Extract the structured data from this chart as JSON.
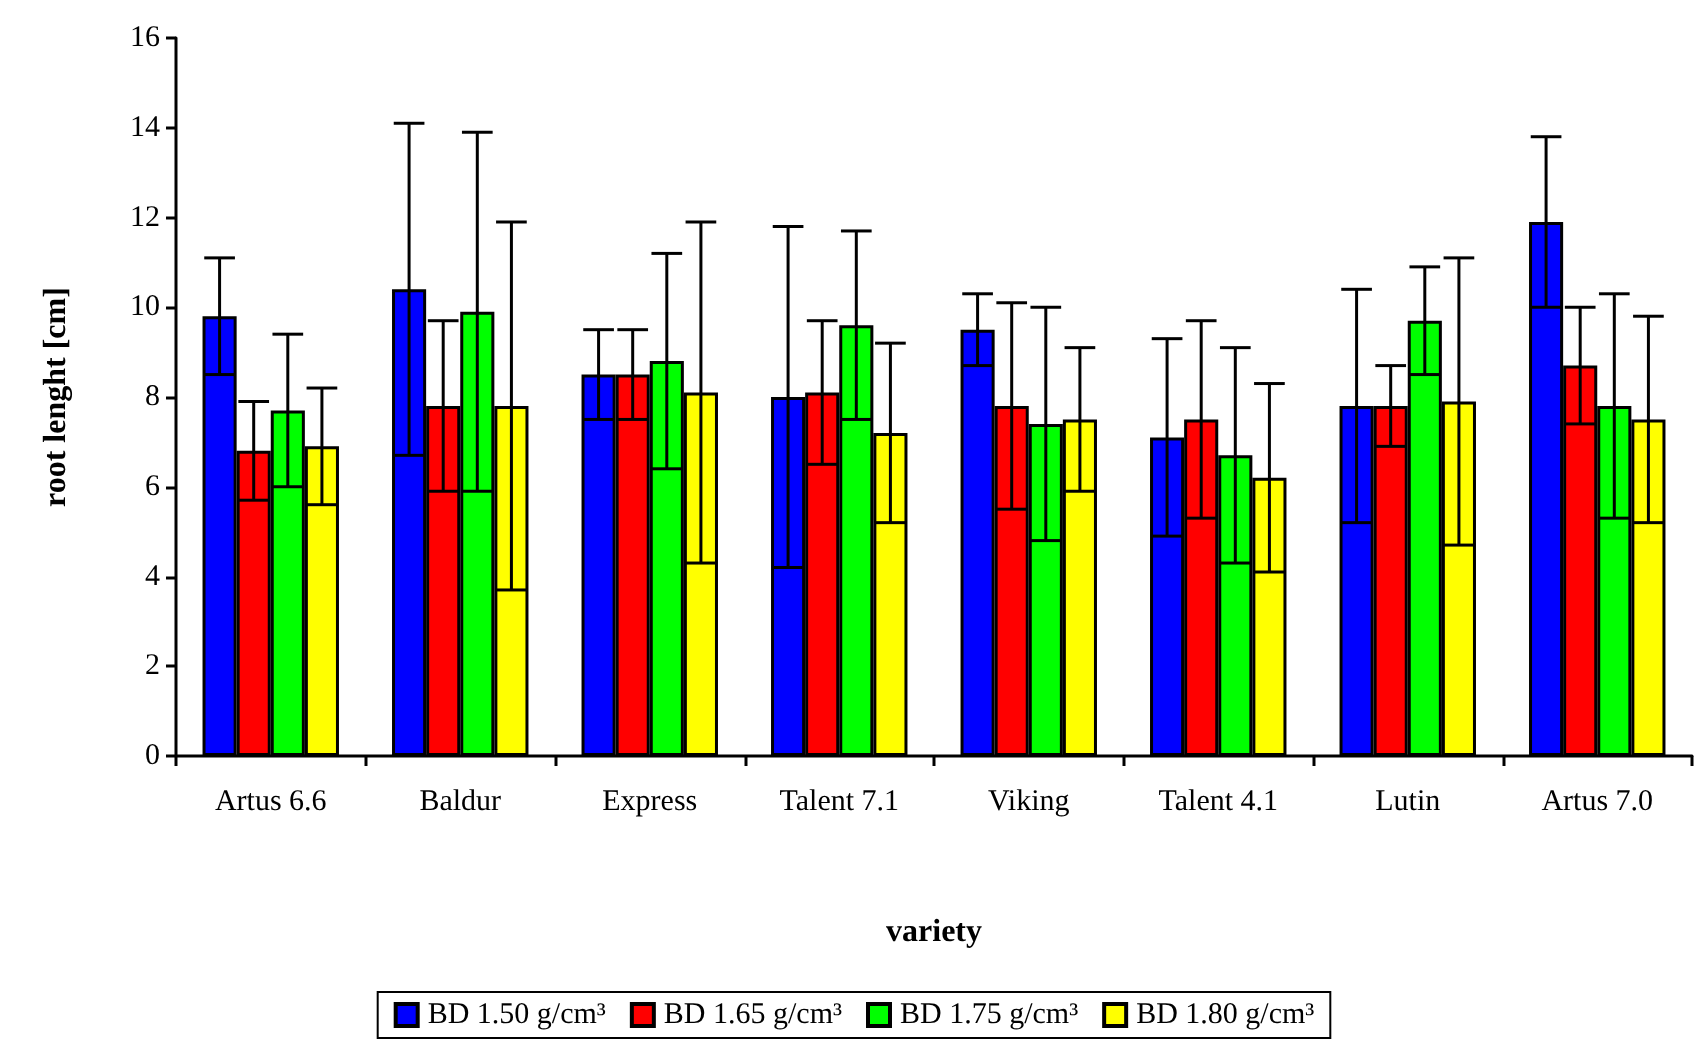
{
  "chart_data": {
    "type": "bar",
    "xlabel": "variety",
    "ylabel": "root lenght [cm]",
    "categories": [
      "Artus 6.6",
      "Baldur",
      "Express",
      "Talent 7.1",
      "Viking",
      "Talent 4.1",
      "Lutin",
      "Artus 7.0"
    ],
    "series": [
      {
        "name": "BD 1.50 g/cm³",
        "color": "#0000ff",
        "values": [
          9.8,
          10.4,
          8.5,
          8.0,
          9.5,
          7.1,
          7.8,
          11.9
        ],
        "errors": [
          1.3,
          3.7,
          1.0,
          3.8,
          0.8,
          2.2,
          2.6,
          1.9
        ]
      },
      {
        "name": "BD 1.65 g/cm³",
        "color": "#ff0000",
        "values": [
          6.8,
          7.8,
          8.5,
          8.1,
          7.8,
          7.5,
          7.8,
          8.7
        ],
        "errors": [
          1.1,
          1.9,
          1.0,
          1.6,
          2.3,
          2.2,
          0.9,
          1.3
        ]
      },
      {
        "name": "BD 1.75 g/cm³",
        "color": "#00ff00",
        "values": [
          7.7,
          9.9,
          8.8,
          9.6,
          7.4,
          6.7,
          9.7,
          7.8
        ],
        "errors": [
          1.7,
          4.0,
          2.4,
          2.1,
          2.6,
          2.4,
          1.2,
          2.5
        ]
      },
      {
        "name": "BD 1.80 g/cm³",
        "color": "#ffff00",
        "values": [
          6.9,
          7.8,
          8.1,
          7.2,
          7.5,
          6.2,
          7.9,
          7.5
        ],
        "errors": [
          1.3,
          4.1,
          3.8,
          2.0,
          1.6,
          2.1,
          3.2,
          2.3
        ]
      }
    ],
    "ylim": [
      0,
      16
    ],
    "yticks": [
      0,
      2,
      4,
      6,
      8,
      10,
      12,
      14,
      16
    ],
    "grid": false,
    "legend": "bottom"
  }
}
